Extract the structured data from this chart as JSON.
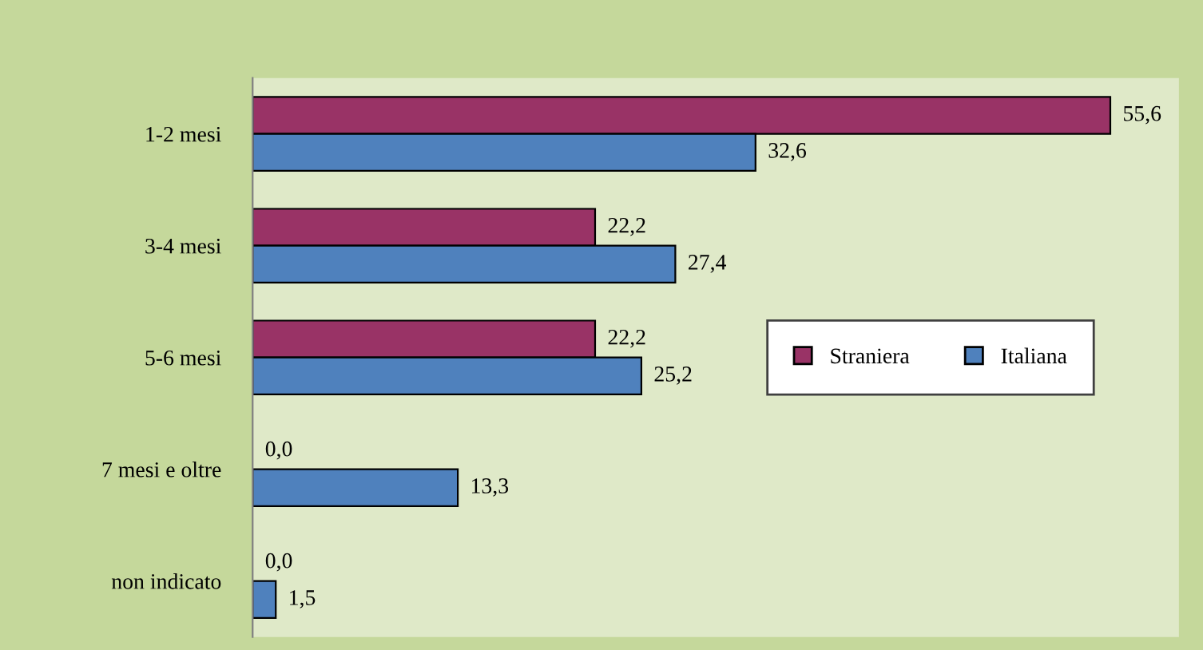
{
  "chart_data": {
    "type": "bar",
    "orientation": "horizontal",
    "categories": [
      "1-2 mesi",
      "3-4 mesi",
      "5-6 mesi",
      "7 mesi e oltre",
      "non indicato"
    ],
    "series": [
      {
        "name": "Straniera",
        "color": "#993366",
        "values": [
          55.6,
          22.2,
          22.2,
          0.0,
          0.0
        ],
        "value_labels": [
          "55,6",
          "22,2",
          "22,2",
          "0,0",
          "0,0"
        ]
      },
      {
        "name": "Italiana",
        "color": "#4f81bd",
        "values": [
          32.6,
          27.4,
          25.2,
          13.3,
          1.5
        ],
        "value_labels": [
          "32,6",
          "27,4",
          "25,2",
          "13,3",
          "1,5"
        ]
      }
    ],
    "grid": false,
    "legend": "right"
  }
}
